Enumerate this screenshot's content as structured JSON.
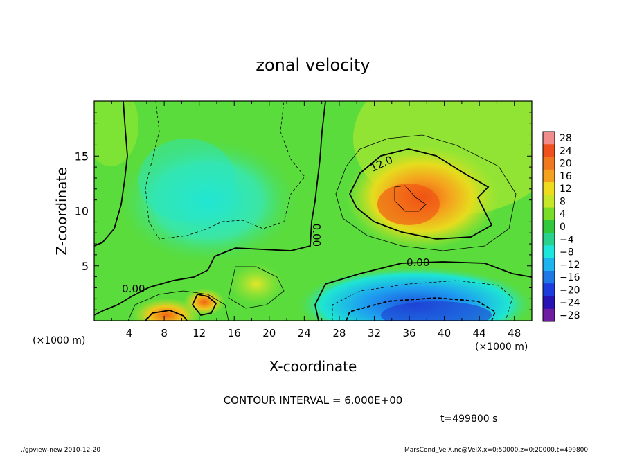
{
  "chart_data": {
    "type": "heatmap",
    "title": "zonal velocity",
    "xlabel": "X-coordinate",
    "ylabel": "Z-coordinate",
    "x_unit_left": "(×1000 m)",
    "x_unit_right": "(×1000 m)",
    "xlim": [
      0,
      50
    ],
    "ylim": [
      0,
      20
    ],
    "x_ticks": [
      4,
      8,
      12,
      16,
      20,
      24,
      28,
      32,
      36,
      40,
      44,
      48
    ],
    "y_ticks": [
      5,
      10,
      15
    ],
    "colorbar_labels": [
      "28",
      "24",
      "20",
      "16",
      "12",
      "8",
      "4",
      "0",
      "−4",
      "−8",
      "−12",
      "−16",
      "−20",
      "−24",
      "−28"
    ],
    "colorbar_levels": [
      28,
      24,
      20,
      16,
      12,
      8,
      4,
      0,
      -4,
      -8,
      -12,
      -16,
      -20,
      -24,
      -28
    ],
    "contour_labels": [
      {
        "text": "12.0",
        "x": 33,
        "z": 14
      },
      {
        "text": "0.00",
        "x": 37,
        "z": 5
      },
      {
        "text": "0.00",
        "x": 4.5,
        "z": 2.6
      },
      {
        "text": "0.00",
        "x": 25,
        "z": 7.8
      }
    ],
    "features": [
      {
        "name": "positive jet core",
        "x": 35,
        "z": 11,
        "value": 20
      },
      {
        "name": "negative jet near surface",
        "x": 38,
        "z": 1,
        "value": -16
      },
      {
        "name": "negative region upper left",
        "x": 12,
        "z": 11,
        "value": -9
      },
      {
        "name": "positive near surface",
        "x": 8,
        "z": 0.5,
        "value": 16
      },
      {
        "name": "positive near surface",
        "x": 12.5,
        "z": 1.7,
        "value": 14
      }
    ]
  },
  "contour_interval": "CONTOUR INTERVAL = 6.000E+00",
  "time": "t=499800 s",
  "footer_left": "./gpview-new   2010-12-20",
  "footer_right": "MarsCond_VelX.nc@VelX,x=0:50000,z=0:20000,t=499800"
}
